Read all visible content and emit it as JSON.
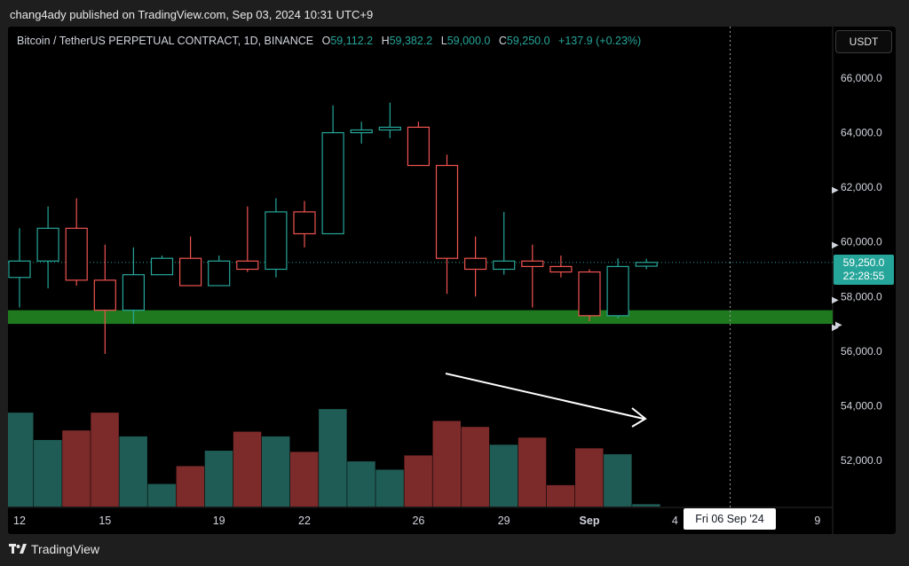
{
  "header": {
    "published": "chang4ady published on TradingView.com, Sep 03, 2024 10:31 UTC+9"
  },
  "legend": {
    "symbol": "Bitcoin / TetherUS PERPETUAL CONTRACT, 1D, BINANCE",
    "o_label": "O",
    "o_value": "59,112.2",
    "h_label": "H",
    "h_value": "59,382.2",
    "l_label": "L",
    "l_value": "59,000.0",
    "c_label": "C",
    "c_value": "59,250.0",
    "change": "+137.9 (+0.23%)"
  },
  "currency_button": "USDT",
  "price_tag": {
    "price": "59,250.0",
    "countdown": "22:28:55"
  },
  "crosshair_date": "Fri 06 Sep '24",
  "footer": {
    "brand": "TradingView"
  },
  "colors": {
    "up": "#26a69a",
    "down": "#ef5350",
    "up_volume": "#1f5c55",
    "down_volume": "#7d2a2a",
    "support_zone": "#1f7a1f",
    "background": "#000000"
  },
  "chart_data": {
    "type": "candlestick",
    "ylim": [
      50000,
      67000
    ],
    "y_ticks": [
      "66,000.0",
      "64,000.0",
      "62,000.0",
      "60,000.0",
      "58,000.0",
      "56,000.0",
      "54,000.0",
      "52,000.0"
    ],
    "x_ticks": [
      "12",
      "15",
      "19",
      "22",
      "26",
      "29",
      "Sep",
      "4",
      "9"
    ],
    "candles": [
      {
        "date": "Aug 12",
        "open": 58700,
        "high": 60500,
        "low": 57600,
        "close": 59300
      },
      {
        "date": "Aug 13",
        "open": 59300,
        "high": 61300,
        "low": 58300,
        "close": 60500
      },
      {
        "date": "Aug 14",
        "open": 60500,
        "high": 61600,
        "low": 58400,
        "close": 58600
      },
      {
        "date": "Aug 15",
        "open": 58600,
        "high": 59900,
        "low": 55900,
        "close": 57500
      },
      {
        "date": "Aug 16",
        "open": 57500,
        "high": 59800,
        "low": 57000,
        "close": 58800
      },
      {
        "date": "Aug 17",
        "open": 58800,
        "high": 59500,
        "low": 58800,
        "close": 59400
      },
      {
        "date": "Aug 18",
        "open": 59400,
        "high": 60200,
        "low": 58400,
        "close": 58400
      },
      {
        "date": "Aug 19",
        "open": 58400,
        "high": 59500,
        "low": 58400,
        "close": 59300
      },
      {
        "date": "Aug 20",
        "open": 59300,
        "high": 61300,
        "low": 58900,
        "close": 59000
      },
      {
        "date": "Aug 21",
        "open": 59000,
        "high": 61600,
        "low": 58700,
        "close": 61100
      },
      {
        "date": "Aug 22",
        "open": 61100,
        "high": 61500,
        "low": 59800,
        "close": 60300
      },
      {
        "date": "Aug 23",
        "open": 60300,
        "high": 65000,
        "low": 60300,
        "close": 64000
      },
      {
        "date": "Aug 24",
        "open": 64000,
        "high": 64400,
        "low": 63600,
        "close": 64100
      },
      {
        "date": "Aug 25",
        "open": 64100,
        "high": 65100,
        "low": 63800,
        "close": 64200
      },
      {
        "date": "Aug 26",
        "open": 64200,
        "high": 64400,
        "low": 62800,
        "close": 62800
      },
      {
        "date": "Aug 27",
        "open": 62800,
        "high": 63200,
        "low": 58100,
        "close": 59400
      },
      {
        "date": "Aug 28",
        "open": 59400,
        "high": 60200,
        "low": 58000,
        "close": 59000
      },
      {
        "date": "Aug 29",
        "open": 59000,
        "high": 61100,
        "low": 58800,
        "close": 59300
      },
      {
        "date": "Aug 30",
        "open": 59300,
        "high": 59900,
        "low": 57600,
        "close": 59100
      },
      {
        "date": "Aug 31",
        "open": 59100,
        "high": 59500,
        "low": 58700,
        "close": 58900
      },
      {
        "date": "Sep 01",
        "open": 58900,
        "high": 59000,
        "low": 57100,
        "close": 57300
      },
      {
        "date": "Sep 02",
        "open": 57300,
        "high": 59400,
        "low": 57200,
        "close": 59100
      },
      {
        "date": "Sep 03",
        "open": 59112.2,
        "high": 59382.2,
        "low": 59000,
        "close": 59250
      }
    ],
    "volume_relative": [
      0.79,
      0.56,
      0.64,
      0.79,
      0.59,
      0.19,
      0.34,
      0.47,
      0.63,
      0.59,
      0.46,
      0.82,
      0.38,
      0.31,
      0.43,
      0.72,
      0.67,
      0.52,
      0.58,
      0.18,
      0.49,
      0.44,
      0.02
    ],
    "support_zone": [
      57000,
      57500
    ],
    "current_price": 59250,
    "crosshair_date": "Sep 06",
    "annotation": {
      "type": "arrow",
      "direction": "down-right",
      "meaning": "declining volume"
    }
  }
}
